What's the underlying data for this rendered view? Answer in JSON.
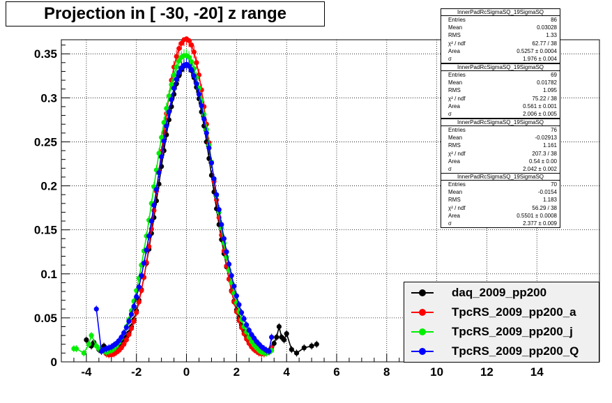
{
  "title": "Projection in [ -30, -20] z range",
  "colors": {
    "daq": "#000000",
    "a": "#ff0000",
    "j": "#00ee00",
    "Q": "#0000ff"
  },
  "stat_boxes": [
    {
      "name": "InnerPadRcSigmaSQ_19SigmaSQ",
      "rows": [
        [
          "Entries",
          "86"
        ],
        [
          "Mean",
          "0.03028"
        ],
        [
          "RMS",
          "1.33"
        ],
        [
          "χ² / ndf",
          "62.77 / 38"
        ],
        [
          "Area",
          "0.5257 ± 0.0004"
        ],
        [
          "σ",
          "1.976 ± 0.004"
        ]
      ]
    },
    {
      "name": "InnerPadRcSigmaSQ_19SigmaSQ",
      "rows": [
        [
          "Entries",
          "69"
        ],
        [
          "Mean",
          "0.01782"
        ],
        [
          "RMS",
          "1.095"
        ],
        [
          "χ² / ndf",
          "75.22 / 38"
        ],
        [
          "Area",
          "0.561 ± 0.001"
        ],
        [
          "σ",
          "2.006 ± 0.005"
        ]
      ]
    },
    {
      "name": "InnerPadRcSigmaSQ_19SigmaSQ",
      "rows": [
        [
          "Entries",
          "76"
        ],
        [
          "Mean",
          "-0.02913"
        ],
        [
          "RMS",
          "1.161"
        ],
        [
          "χ² / ndf",
          "207.3 / 38"
        ],
        [
          "Area",
          "0.54 ± 0.00"
        ],
        [
          "σ",
          "2.042 ± 0.002"
        ]
      ]
    },
    {
      "name": "InnerPadRcSigmaSQ_19SigmaSQ",
      "rows": [
        [
          "Entries",
          "70"
        ],
        [
          "Mean",
          "-0.0154"
        ],
        [
          "RMS",
          "1.183"
        ],
        [
          "χ² / ndf",
          "56.29 / 38"
        ],
        [
          "Area",
          "0.5501 ± 0.0008"
        ],
        [
          "σ",
          "2.377 ± 0.009"
        ]
      ]
    }
  ],
  "legend": [
    "daq_2009_pp200",
    "TpcRS_2009_pp200_a",
    "TpcRS_2009_pp200_j",
    "TpcRS_2009_pp200_Q"
  ],
  "chart_data": {
    "type": "scatter",
    "title": "Projection in [ -30, -20] z range",
    "xlim": [
      -5.0,
      16.5
    ],
    "ylim": [
      0,
      0.366
    ],
    "x_ticks": [
      -4,
      -2,
      0,
      2,
      4,
      6,
      8,
      10,
      12,
      14
    ],
    "x_tick_labels": [
      "-4",
      "-2",
      "0",
      "2",
      "4",
      "6",
      "8",
      "10",
      "12",
      "14"
    ],
    "y_ticks": [
      0,
      0.05,
      0.1,
      0.15,
      0.2,
      0.25,
      0.3,
      0.35
    ],
    "y_tick_labels": [
      "0",
      "0.05",
      "0.1",
      "0.15",
      "0.2",
      "0.25",
      "0.3",
      "0.35"
    ],
    "grid": true,
    "legend_position": "bottom-right",
    "series": [
      {
        "name": "daq_2009_pp200",
        "color": "#000000",
        "x": [
          -4.0,
          -3.9,
          -3.8,
          -3.7,
          -3.5,
          -3.4,
          -3.3,
          -3.2,
          -3.1,
          -3.0,
          -2.9,
          -2.8,
          -2.7,
          -2.6,
          -2.5,
          -2.4,
          -2.3,
          -2.2,
          -2.1,
          -2.0,
          -1.9,
          -1.8,
          -1.7,
          -1.6,
          -1.5,
          -1.4,
          -1.3,
          -1.2,
          -1.1,
          -1.0,
          -0.9,
          -0.8,
          -0.7,
          -0.6,
          -0.5,
          -0.4,
          -0.3,
          -0.2,
          -0.1,
          0.0,
          0.1,
          0.2,
          0.3,
          0.4,
          0.5,
          0.6,
          0.7,
          0.8,
          0.9,
          1.0,
          1.1,
          1.2,
          1.3,
          1.4,
          1.5,
          1.6,
          1.7,
          1.8,
          1.9,
          2.0,
          2.1,
          2.2,
          2.3,
          2.4,
          2.5,
          2.6,
          2.7,
          2.8,
          2.9,
          3.0,
          3.1,
          3.2,
          3.3,
          3.4,
          3.5,
          3.6,
          3.7,
          3.8,
          3.9,
          4.0,
          4.2,
          4.4,
          4.7,
          5.0,
          5.2
        ],
        "y": [
          0.025,
          0.02,
          0.018,
          0.022,
          0.014,
          0.012,
          0.018,
          0.015,
          0.012,
          0.011,
          0.012,
          0.014,
          0.016,
          0.02,
          0.024,
          0.028,
          0.033,
          0.04,
          0.048,
          0.058,
          0.07,
          0.082,
          0.096,
          0.112,
          0.128,
          0.146,
          0.164,
          0.183,
          0.202,
          0.222,
          0.24,
          0.258,
          0.275,
          0.29,
          0.304,
          0.316,
          0.325,
          0.332,
          0.336,
          0.338,
          0.336,
          0.331,
          0.323,
          0.312,
          0.299,
          0.284,
          0.268,
          0.25,
          0.231,
          0.212,
          0.193,
          0.174,
          0.156,
          0.139,
          0.123,
          0.108,
          0.094,
          0.081,
          0.069,
          0.059,
          0.05,
          0.042,
          0.035,
          0.029,
          0.024,
          0.02,
          0.017,
          0.014,
          0.012,
          0.011,
          0.01,
          0.011,
          0.013,
          0.016,
          0.021,
          0.028,
          0.04,
          0.028,
          0.025,
          0.032,
          0.014,
          0.01,
          0.016,
          0.018,
          0.02
        ]
      },
      {
        "name": "TpcRS_2009_pp200_a",
        "color": "#ff0000",
        "x": [
          -3.3,
          -3.2,
          -3.1,
          -3.0,
          -2.9,
          -2.8,
          -2.7,
          -2.6,
          -2.5,
          -2.4,
          -2.3,
          -2.2,
          -2.1,
          -2.0,
          -1.9,
          -1.8,
          -1.7,
          -1.6,
          -1.5,
          -1.4,
          -1.3,
          -1.2,
          -1.1,
          -1.0,
          -0.9,
          -0.8,
          -0.7,
          -0.6,
          -0.5,
          -0.4,
          -0.3,
          -0.2,
          -0.1,
          0.0,
          0.1,
          0.2,
          0.3,
          0.4,
          0.5,
          0.6,
          0.7,
          0.8,
          0.9,
          1.0,
          1.1,
          1.2,
          1.3,
          1.4,
          1.5,
          1.6,
          1.7,
          1.8,
          1.9,
          2.0,
          2.1,
          2.2,
          2.3,
          2.4,
          2.5,
          2.6,
          2.7,
          2.8,
          2.9,
          3.0,
          3.1,
          3.2,
          3.3,
          3.4
        ],
        "y": [
          0.012,
          0.009,
          0.008,
          0.008,
          0.009,
          0.011,
          0.013,
          0.016,
          0.02,
          0.025,
          0.031,
          0.038,
          0.046,
          0.056,
          0.068,
          0.081,
          0.096,
          0.113,
          0.131,
          0.151,
          0.172,
          0.194,
          0.216,
          0.239,
          0.261,
          0.282,
          0.302,
          0.32,
          0.335,
          0.347,
          0.356,
          0.362,
          0.366,
          0.367,
          0.365,
          0.36,
          0.352,
          0.34,
          0.326,
          0.309,
          0.29,
          0.27,
          0.249,
          0.227,
          0.205,
          0.184,
          0.164,
          0.144,
          0.126,
          0.109,
          0.094,
          0.08,
          0.068,
          0.057,
          0.047,
          0.039,
          0.032,
          0.026,
          0.021,
          0.017,
          0.014,
          0.012,
          0.01,
          0.009,
          0.009,
          0.01,
          0.012,
          0.016
        ]
      },
      {
        "name": "TpcRS_2009_pp200_j",
        "color": "#00ee00",
        "x": [
          -4.5,
          -4.4,
          -4.1,
          -3.9,
          -3.8,
          -3.6,
          -3.5,
          -3.4,
          -3.3,
          -3.2,
          -3.1,
          -3.0,
          -2.9,
          -2.8,
          -2.7,
          -2.6,
          -2.5,
          -2.4,
          -2.3,
          -2.2,
          -2.1,
          -2.0,
          -1.9,
          -1.8,
          -1.7,
          -1.6,
          -1.5,
          -1.4,
          -1.3,
          -1.2,
          -1.1,
          -1.0,
          -0.9,
          -0.8,
          -0.7,
          -0.6,
          -0.5,
          -0.4,
          -0.3,
          -0.2,
          -0.1,
          0.0,
          0.1,
          0.2,
          0.3,
          0.4,
          0.5,
          0.6,
          0.7,
          0.8,
          0.9,
          1.0,
          1.1,
          1.2,
          1.3,
          1.4,
          1.5,
          1.6,
          1.7,
          1.8,
          1.9,
          2.0,
          2.1,
          2.2,
          2.3,
          2.4,
          2.5,
          2.6,
          2.7,
          2.8,
          2.9,
          3.0,
          3.1,
          3.2,
          3.3,
          3.4
        ],
        "y": [
          0.015,
          0.015,
          0.01,
          0.02,
          0.03,
          0.018,
          0.015,
          0.013,
          0.012,
          0.011,
          0.012,
          0.013,
          0.015,
          0.018,
          0.022,
          0.027,
          0.033,
          0.04,
          0.048,
          0.058,
          0.069,
          0.081,
          0.095,
          0.11,
          0.126,
          0.143,
          0.161,
          0.18,
          0.199,
          0.218,
          0.237,
          0.255,
          0.272,
          0.288,
          0.302,
          0.315,
          0.326,
          0.335,
          0.342,
          0.346,
          0.348,
          0.348,
          0.346,
          0.341,
          0.333,
          0.323,
          0.311,
          0.297,
          0.281,
          0.264,
          0.246,
          0.227,
          0.208,
          0.189,
          0.17,
          0.152,
          0.135,
          0.119,
          0.104,
          0.09,
          0.078,
          0.067,
          0.057,
          0.048,
          0.04,
          0.034,
          0.028,
          0.023,
          0.019,
          0.016,
          0.013,
          0.011,
          0.01,
          0.01,
          0.011,
          0.013
        ]
      },
      {
        "name": "TpcRS_2009_pp200_Q",
        "color": "#0000ff",
        "x": [
          -3.6,
          -3.4,
          -3.3,
          -3.2,
          -3.1,
          -3.0,
          -2.9,
          -2.8,
          -2.7,
          -2.6,
          -2.5,
          -2.4,
          -2.3,
          -2.2,
          -2.1,
          -2.0,
          -1.9,
          -1.8,
          -1.7,
          -1.6,
          -1.5,
          -1.4,
          -1.3,
          -1.2,
          -1.1,
          -1.0,
          -0.9,
          -0.8,
          -0.7,
          -0.6,
          -0.5,
          -0.4,
          -0.3,
          -0.2,
          -0.1,
          0.0,
          0.1,
          0.2,
          0.3,
          0.4,
          0.5,
          0.6,
          0.7,
          0.8,
          0.9,
          1.0,
          1.1,
          1.2,
          1.3,
          1.4,
          1.5,
          1.6,
          1.7,
          1.8,
          1.9,
          2.0,
          2.1,
          2.2,
          2.3,
          2.4,
          2.5,
          2.6,
          2.7,
          2.8,
          2.9,
          3.0,
          3.1,
          3.2,
          3.3,
          3.4
        ],
        "y": [
          0.06,
          0.012,
          0.014,
          0.015,
          0.016,
          0.017,
          0.019,
          0.021,
          0.024,
          0.028,
          0.033,
          0.039,
          0.046,
          0.054,
          0.063,
          0.074,
          0.085,
          0.098,
          0.112,
          0.127,
          0.143,
          0.16,
          0.178,
          0.196,
          0.215,
          0.233,
          0.251,
          0.268,
          0.284,
          0.298,
          0.311,
          0.321,
          0.329,
          0.334,
          0.337,
          0.338,
          0.336,
          0.332,
          0.325,
          0.316,
          0.304,
          0.291,
          0.276,
          0.26,
          0.243,
          0.226,
          0.208,
          0.19,
          0.173,
          0.156,
          0.14,
          0.125,
          0.111,
          0.098,
          0.086,
          0.075,
          0.065,
          0.056,
          0.049,
          0.042,
          0.036,
          0.031,
          0.027,
          0.023,
          0.02,
          0.017,
          0.015,
          0.013,
          0.012,
          0.028
        ]
      }
    ]
  }
}
